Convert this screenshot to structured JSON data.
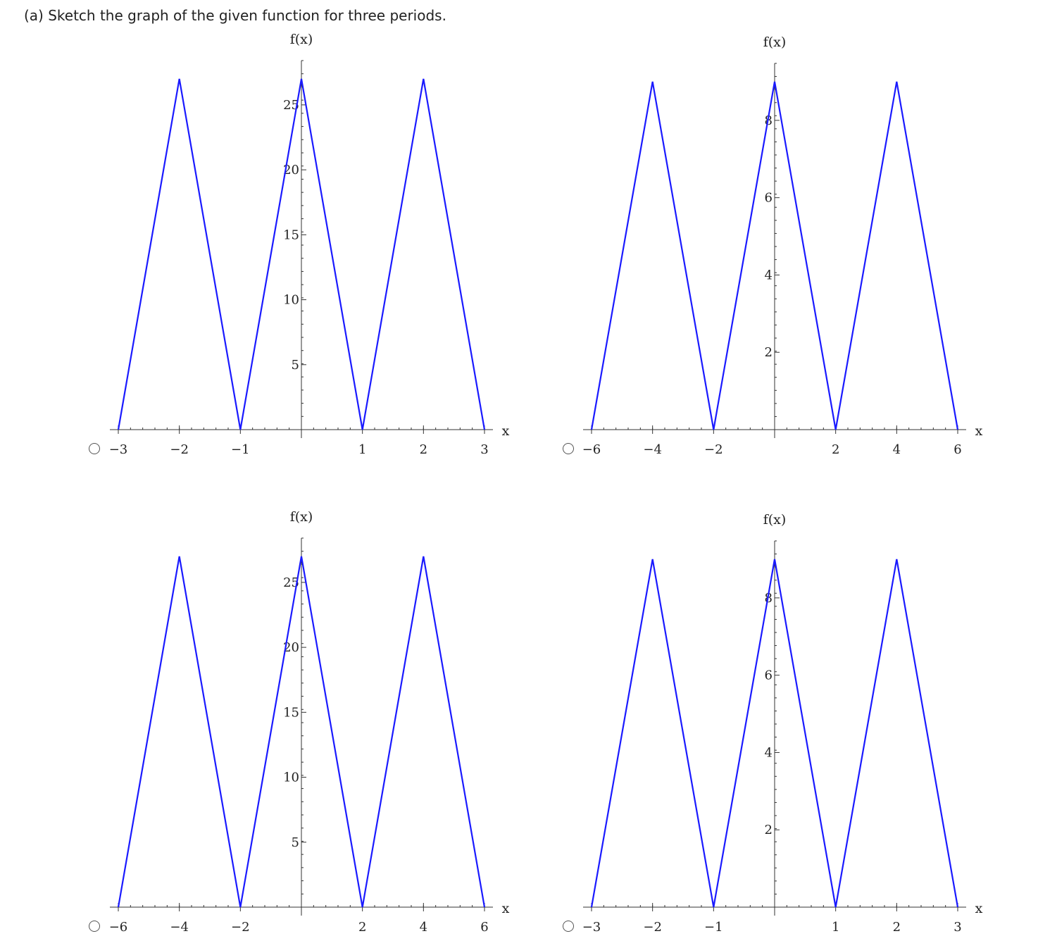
{
  "question": {
    "text": "(a) Sketch the graph of the given function for three periods."
  },
  "chart_data": [
    {
      "type": "line",
      "option": "A",
      "xlabel": "x",
      "ylabel": "f(x)",
      "x_ticks": [
        -3,
        -2,
        -1,
        1,
        2,
        3
      ],
      "y_ticks": [
        5,
        10,
        15,
        20,
        25
      ],
      "xlim": [
        -3,
        3
      ],
      "ylim": [
        0,
        27
      ],
      "series": [
        {
          "x": [
            -3,
            -2,
            -1,
            0,
            1,
            2,
            3
          ],
          "y": [
            0,
            27,
            0,
            27,
            0,
            27,
            0
          ]
        }
      ],
      "color": "#1a1aff"
    },
    {
      "type": "line",
      "option": "B",
      "xlabel": "x",
      "ylabel": "f(x)",
      "x_ticks": [
        -6,
        -4,
        -2,
        2,
        4,
        6
      ],
      "y_ticks": [
        2,
        4,
        6,
        8
      ],
      "xlim": [
        -6,
        6
      ],
      "ylim": [
        0,
        9
      ],
      "series": [
        {
          "x": [
            -6,
            -4,
            -2,
            0,
            2,
            4,
            6
          ],
          "y": [
            0,
            9,
            0,
            9,
            0,
            9,
            0
          ]
        }
      ],
      "color": "#1a1aff"
    },
    {
      "type": "line",
      "option": "C",
      "xlabel": "x",
      "ylabel": "f(x)",
      "x_ticks": [
        -6,
        -4,
        -2,
        2,
        4,
        6
      ],
      "y_ticks": [
        5,
        10,
        15,
        20,
        25
      ],
      "xlim": [
        -6,
        6
      ],
      "ylim": [
        0,
        27
      ],
      "series": [
        {
          "x": [
            -6,
            -4,
            -2,
            0,
            2,
            4,
            6
          ],
          "y": [
            0,
            27,
            0,
            27,
            0,
            27,
            0
          ]
        }
      ],
      "color": "#1a1aff"
    },
    {
      "type": "line",
      "option": "D",
      "xlabel": "x",
      "ylabel": "f(x)",
      "x_ticks": [
        -3,
        -2,
        -1,
        1,
        2,
        3
      ],
      "y_ticks": [
        2,
        4,
        6,
        8
      ],
      "xlim": [
        -3,
        3
      ],
      "ylim": [
        0,
        9
      ],
      "series": [
        {
          "x": [
            -3,
            -2,
            -1,
            0,
            1,
            2,
            3
          ],
          "y": [
            0,
            9,
            0,
            9,
            0,
            9,
            0
          ]
        }
      ],
      "color": "#1a1aff"
    }
  ]
}
